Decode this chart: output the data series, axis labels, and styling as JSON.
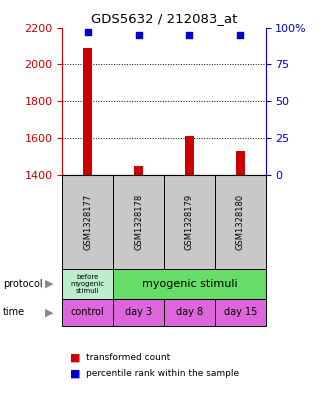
{
  "title": "GDS5632 / 212083_at",
  "samples": [
    "GSM1328177",
    "GSM1328178",
    "GSM1328179",
    "GSM1328180"
  ],
  "transformed_counts": [
    2090,
    1450,
    1610,
    1530
  ],
  "percentile_ranks": [
    97,
    95,
    95,
    95
  ],
  "ylim_left": [
    1400,
    2200
  ],
  "ylim_right": [
    0,
    100
  ],
  "yticks_left": [
    1400,
    1600,
    1800,
    2000,
    2200
  ],
  "yticks_right": [
    0,
    25,
    50,
    75,
    100
  ],
  "bar_color": "#cc0000",
  "dot_color": "#0000cc",
  "protocol_labels": [
    "before\nmyogenic\nstimuli",
    "myogenic stimuli"
  ],
  "protocol_colors": [
    "#bbeecc",
    "#66dd66"
  ],
  "time_labels": [
    "control",
    "day 3",
    "day 8",
    "day 15"
  ],
  "time_color": "#dd66dd",
  "sample_bg_color": "#c8c8c8",
  "left_axis_color": "#cc0000",
  "right_axis_color": "#0000cc",
  "legend_red_label": "transformed count",
  "legend_blue_label": "percentile rank within the sample"
}
